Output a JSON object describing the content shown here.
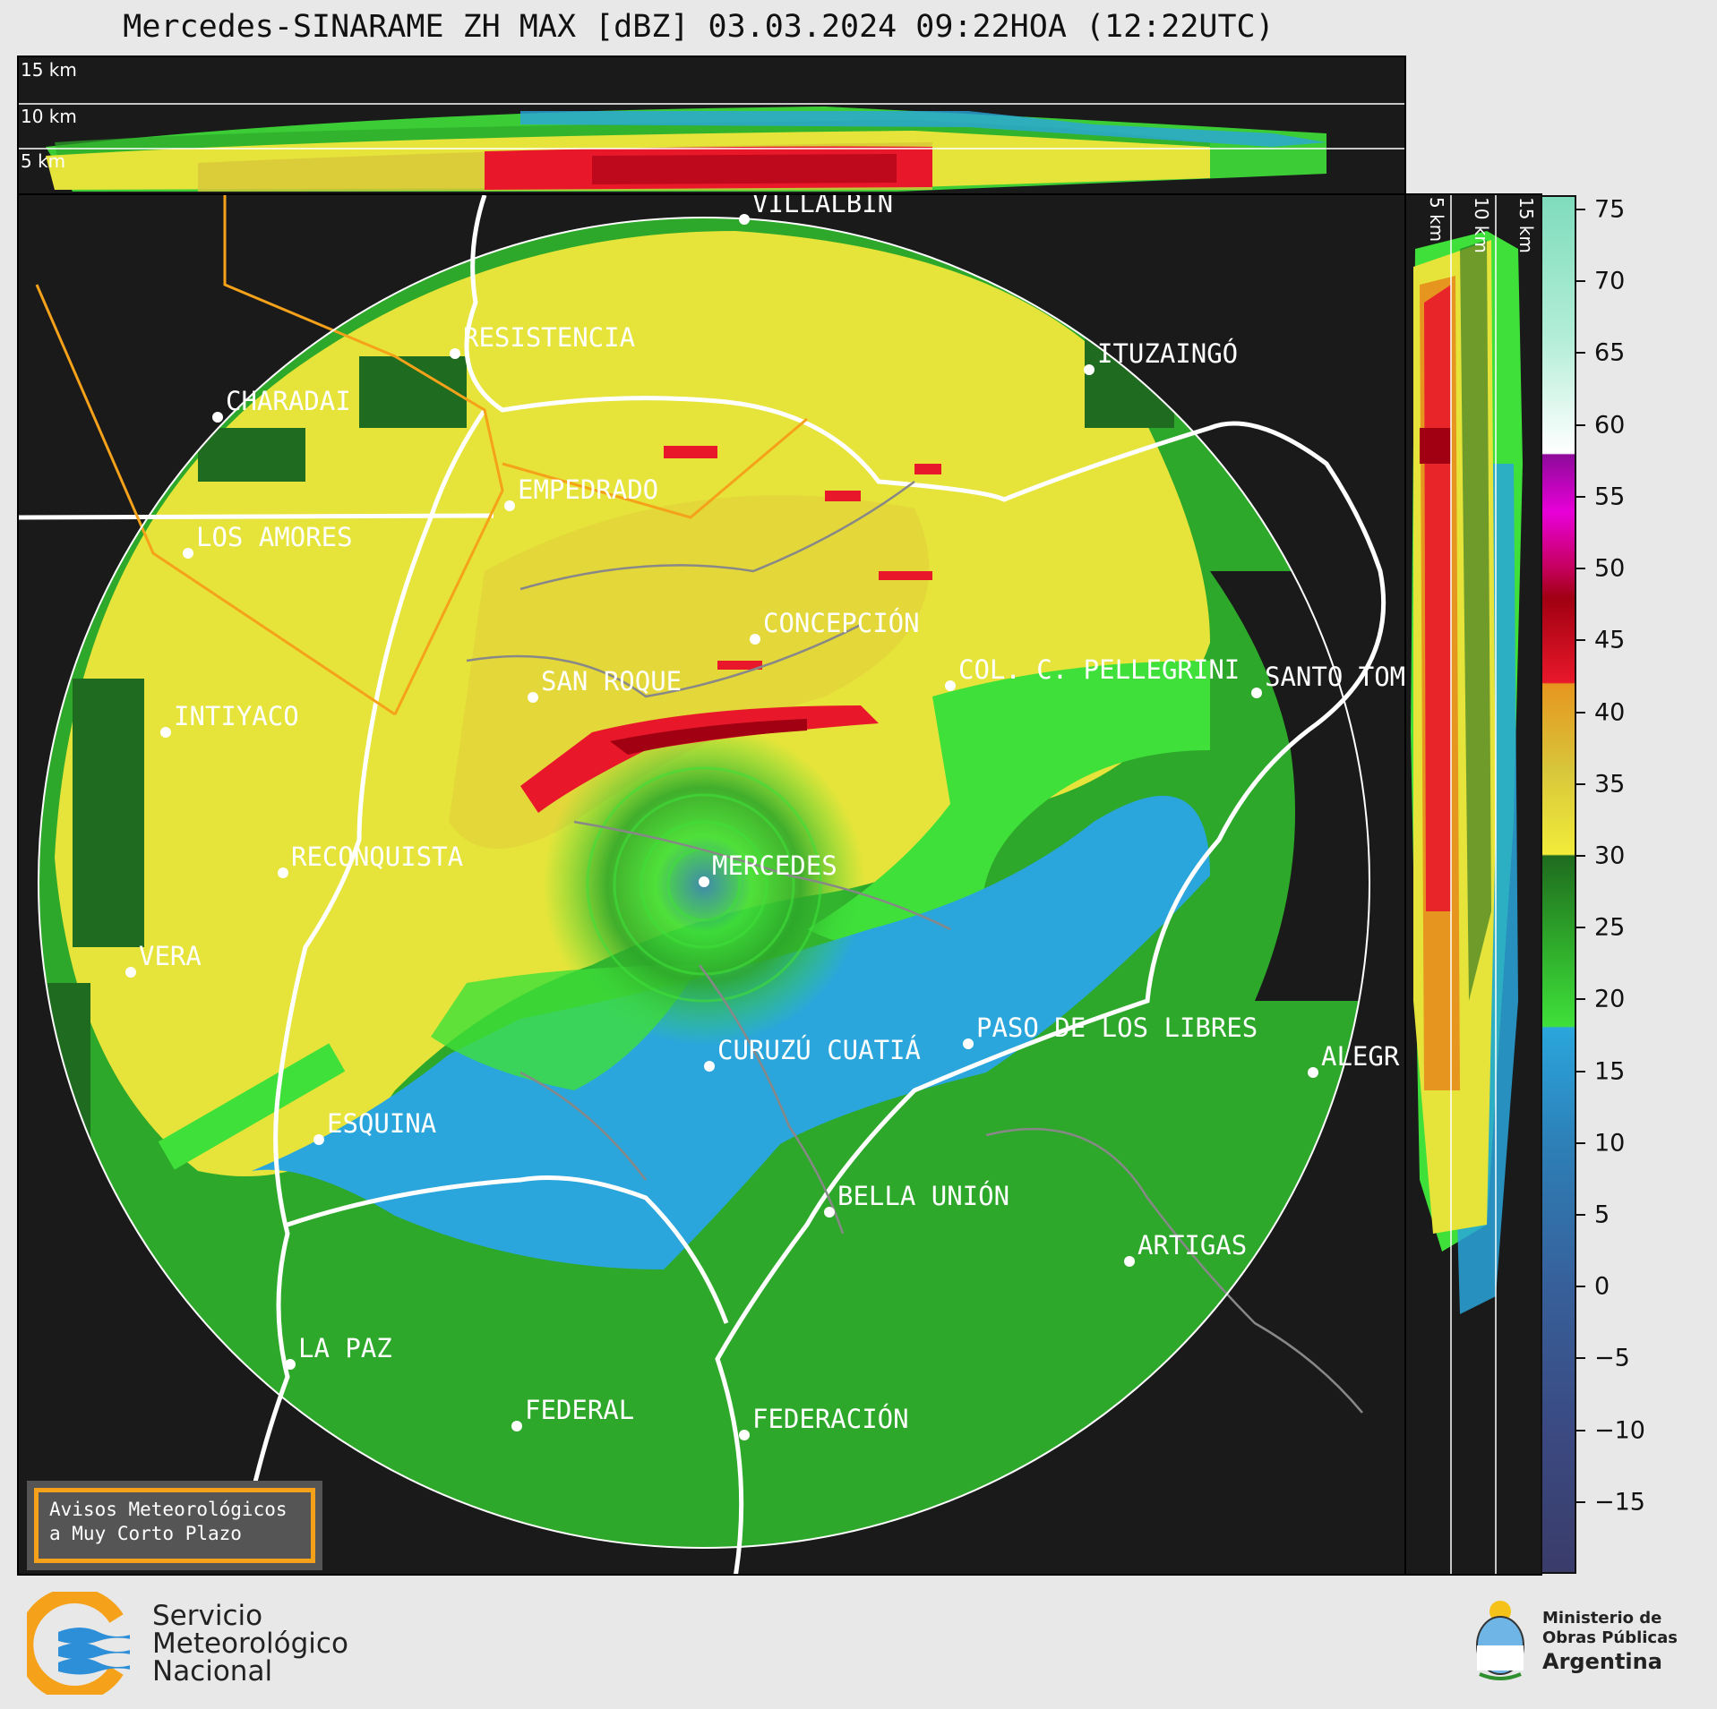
{
  "title": "Mercedes-SINARAME ZH MAX [dBZ] 03.03.2024 09:22HOA (12:22UTC)",
  "top_panel": {
    "altitude_labels": [
      "15 km",
      "10 km",
      "5 km"
    ]
  },
  "side_panel": {
    "altitude_labels": [
      "5 km",
      "10 km",
      "15 km"
    ]
  },
  "colorbar": {
    "ticks": [
      "75",
      "70",
      "65",
      "60",
      "55",
      "50",
      "45",
      "40",
      "35",
      "30",
      "25",
      "20",
      "15",
      "10",
      "5",
      "0",
      "−5",
      "−10",
      "−15"
    ],
    "tick_values": [
      75,
      70,
      65,
      60,
      55,
      50,
      45,
      40,
      35,
      30,
      25,
      20,
      15,
      10,
      5,
      0,
      -5,
      -10,
      -15
    ],
    "range": [
      -20,
      76
    ],
    "stops": [
      {
        "value": -20,
        "color": "#3a3c6a"
      },
      {
        "value": -10,
        "color": "#3b4a82"
      },
      {
        "value": 0,
        "color": "#37609a"
      },
      {
        "value": 10,
        "color": "#2d80b8"
      },
      {
        "value": 18,
        "color": "#2aa6dc"
      },
      {
        "value": 18.1,
        "color": "#3fe03a"
      },
      {
        "value": 24,
        "color": "#2ea82a"
      },
      {
        "value": 30,
        "color": "#1f6b1f"
      },
      {
        "value": 30.1,
        "color": "#f2ec3a"
      },
      {
        "value": 36,
        "color": "#d8c63a"
      },
      {
        "value": 42,
        "color": "#e6961e"
      },
      {
        "value": 42.1,
        "color": "#e8182a"
      },
      {
        "value": 48,
        "color": "#a00012"
      },
      {
        "value": 50,
        "color": "#c4005a"
      },
      {
        "value": 54,
        "color": "#e800d8"
      },
      {
        "value": 58,
        "color": "#8e0a9a"
      },
      {
        "value": 58.1,
        "color": "#ffffff"
      },
      {
        "value": 66,
        "color": "#b4eed8"
      },
      {
        "value": 76,
        "color": "#7fdcbc"
      }
    ]
  },
  "map": {
    "radar_site": "MERCEDES",
    "cities": [
      {
        "name": "VILLALBÍN"
      },
      {
        "name": "RESISTENCIA"
      },
      {
        "name": "CHARADAI"
      },
      {
        "name": "ITUZAINGÓ"
      },
      {
        "name": "EMPEDRADO"
      },
      {
        "name": "LOS AMORES"
      },
      {
        "name": "CONCEPCIÓN"
      },
      {
        "name": "COL. C. PELLEGRINI"
      },
      {
        "name": "SANTO TOM"
      },
      {
        "name": "SAN ROQUE"
      },
      {
        "name": "INTIYACO"
      },
      {
        "name": "MERCEDES"
      },
      {
        "name": "RECONQUISTA"
      },
      {
        "name": "VERA"
      },
      {
        "name": "PASO DE LOS LIBRES"
      },
      {
        "name": "CURUZÚ CUATIÁ"
      },
      {
        "name": "ALEGR"
      },
      {
        "name": "ESQUINA"
      },
      {
        "name": "BELLA UNIÓN"
      },
      {
        "name": "ARTIGAS"
      },
      {
        "name": "LA PAZ"
      },
      {
        "name": "FEDERAL"
      },
      {
        "name": "FEDERACIÓN"
      }
    ]
  },
  "warning_box": {
    "line1": "Avisos Meteorológicos",
    "line2": "a Muy Corto Plazo"
  },
  "smn_logo": {
    "line1": "Servicio",
    "line2": "Meteorológico",
    "line3": "Nacional"
  },
  "ministry_logo": {
    "line1": "Ministerio de",
    "line2": "Obras Públicas",
    "line3": "Argentina"
  }
}
